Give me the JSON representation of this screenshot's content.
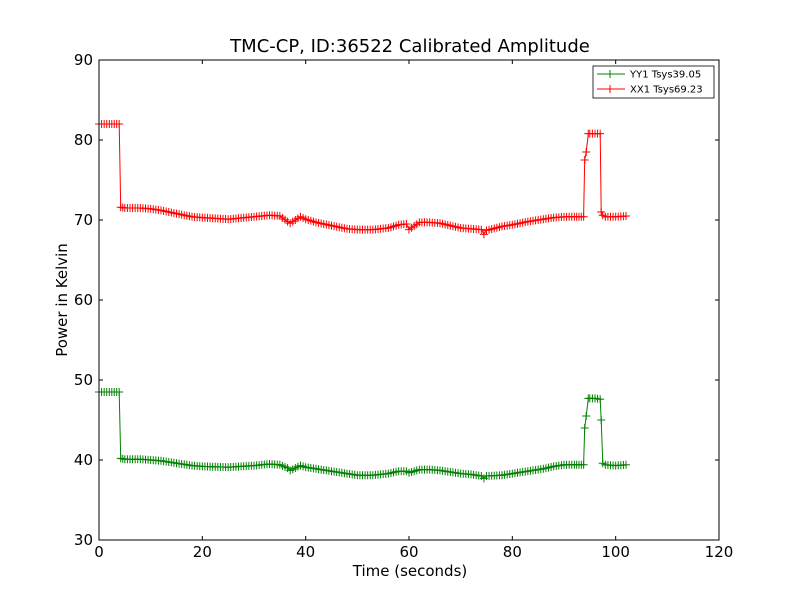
{
  "chart_data": {
    "type": "line",
    "title": "TMC-CP, ID:36522 Calibrated Amplitude",
    "xlabel": "Time (seconds)",
    "ylabel": "Power in Kelvin",
    "xlim": [
      0,
      120
    ],
    "ylim": [
      30,
      90
    ],
    "xticks": [
      0,
      20,
      40,
      60,
      80,
      100,
      120
    ],
    "yticks": [
      30,
      40,
      50,
      60,
      70,
      80,
      90
    ],
    "x_tick_labels": [
      "0",
      "20",
      "40",
      "60",
      "80",
      "100",
      "120"
    ],
    "y_tick_labels": [
      "30",
      "40",
      "50",
      "60",
      "70",
      "80",
      "90"
    ],
    "grid": false,
    "legend_position": "top-right",
    "marker": "+",
    "series": [
      {
        "name": "YY1 Tsys39.05",
        "color": "#008000",
        "x": [
          0,
          2,
          3.9,
          4.2,
          5,
          8,
          10,
          12,
          15,
          18,
          20,
          25,
          30,
          33,
          35,
          36.5,
          37,
          38,
          39,
          40,
          42,
          45,
          48,
          50,
          53,
          56,
          58,
          59.5,
          60,
          62,
          64,
          66,
          68,
          70,
          72,
          74,
          74.5,
          75,
          78,
          80,
          83,
          86,
          88,
          90,
          92,
          93.8,
          94,
          94.3,
          94.7,
          95,
          96,
          97,
          97.2,
          97.5,
          98,
          100,
          102
        ],
        "y": [
          48.5,
          48.5,
          48.5,
          40.2,
          40.1,
          40.1,
          40.0,
          39.9,
          39.6,
          39.3,
          39.2,
          39.1,
          39.3,
          39.5,
          39.4,
          39.0,
          38.7,
          39.0,
          39.3,
          39.1,
          38.9,
          38.6,
          38.3,
          38.1,
          38.1,
          38.3,
          38.6,
          38.6,
          38.4,
          38.8,
          38.8,
          38.7,
          38.5,
          38.3,
          38.2,
          38.0,
          37.7,
          38.0,
          38.1,
          38.3,
          38.6,
          38.9,
          39.2,
          39.4,
          39.4,
          39.4,
          44.0,
          45.5,
          47.7,
          47.7,
          47.7,
          47.6,
          45.0,
          39.6,
          39.4,
          39.3,
          39.4
        ]
      },
      {
        "name": "XX1 Tsys69.23",
        "color": "#ff0000",
        "x": [
          0,
          2,
          3.9,
          4.2,
          5,
          8,
          10,
          12,
          15,
          18,
          20,
          25,
          30,
          33,
          35,
          36.5,
          37,
          38,
          39,
          40,
          42,
          45,
          48,
          50,
          53,
          56,
          58,
          59.5,
          60,
          62,
          64,
          66,
          68,
          70,
          72,
          74,
          74.5,
          75,
          78,
          80,
          83,
          86,
          88,
          90,
          92,
          93.8,
          94,
          94.3,
          94.7,
          95,
          96,
          97,
          97.2,
          97.5,
          98,
          100,
          102
        ],
        "y": [
          82.0,
          82.0,
          82.0,
          71.6,
          71.5,
          71.5,
          71.4,
          71.2,
          70.8,
          70.4,
          70.3,
          70.1,
          70.4,
          70.6,
          70.5,
          69.8,
          69.6,
          70.0,
          70.4,
          70.1,
          69.7,
          69.3,
          68.9,
          68.8,
          68.8,
          69.0,
          69.4,
          69.5,
          68.8,
          69.7,
          69.7,
          69.6,
          69.3,
          69.0,
          68.9,
          68.8,
          68.2,
          68.7,
          69.2,
          69.4,
          69.8,
          70.1,
          70.3,
          70.4,
          70.4,
          70.4,
          77.5,
          78.5,
          80.8,
          80.8,
          80.8,
          80.8,
          71.0,
          70.6,
          70.4,
          70.4,
          70.5
        ]
      }
    ]
  }
}
